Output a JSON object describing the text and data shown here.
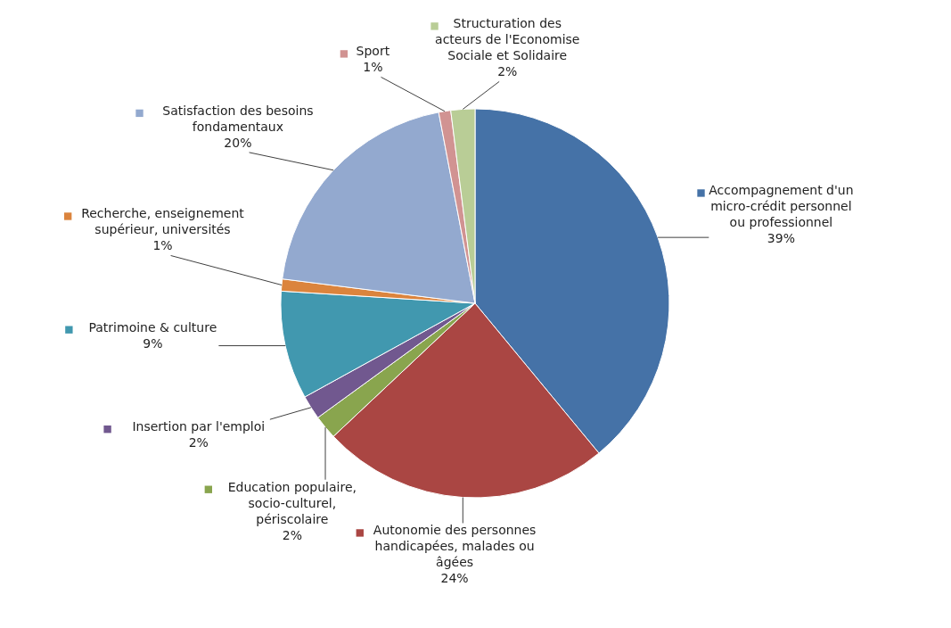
{
  "chart_data": {
    "type": "pie",
    "categories": [
      "Accompagnement d'un micro-crédit personnel ou professionnel",
      "Autonomie des personnes handicapées, malades ou âgées",
      "Education populaire, socio-culturel, périscolaire",
      "Insertion par l'emploi",
      "Patrimoine & culture",
      "Recherche, enseignement supérieur, universités",
      "Satisfaction des besoins fondamentaux",
      "Sport",
      "Structuration des acteurs de l'Economise Sociale et Solidaire"
    ],
    "values": [
      39,
      24,
      2,
      2,
      9,
      1,
      20,
      1,
      2
    ],
    "colors": [
      "#4572a7",
      "#aa4643",
      "#89a54e",
      "#71588f",
      "#4198af",
      "#db843d",
      "#93a9cf",
      "#d19392",
      "#b9cd96"
    ],
    "legend": "left",
    "value_labels": [
      "39%",
      "24%",
      "2%",
      "2%",
      "9%",
      "1%",
      "20%",
      "1%",
      "2%"
    ]
  }
}
